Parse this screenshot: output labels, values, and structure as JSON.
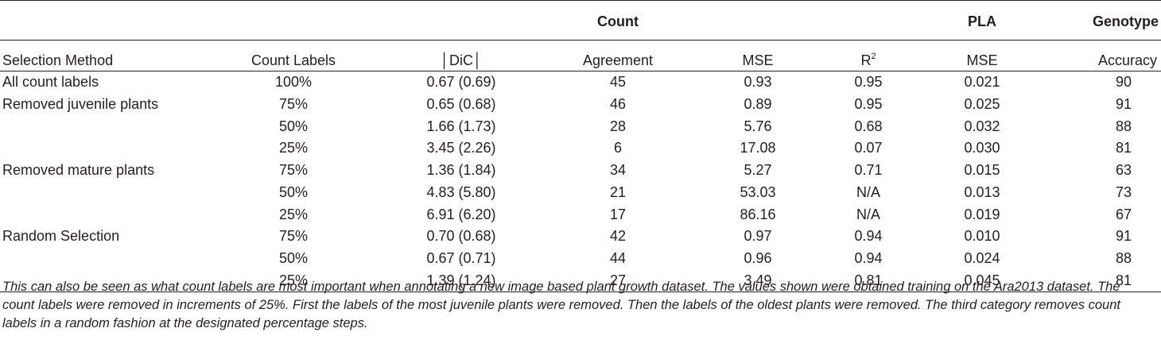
{
  "table": {
    "group_headers": {
      "count": "Count",
      "pla": "PLA",
      "genotype": "Genotype"
    },
    "columns": {
      "selection_method": "Selection Method",
      "count_labels": "Count Labels",
      "dic": "│DiC│",
      "agreement": "Agreement",
      "mse": "MSE",
      "r2_base": "R",
      "r2_sup": "2",
      "pla_mse": "MSE",
      "accuracy": "Accuracy"
    },
    "rows": [
      {
        "method": "All count labels",
        "labels": "100%",
        "dic": "0.67 (0.69)",
        "agreement": "45",
        "mse": "0.93",
        "r2": "0.95",
        "pla_mse": "0.021",
        "accuracy": "90"
      },
      {
        "method": "Removed juvenile plants",
        "labels": "75%",
        "dic": "0.65 (0.68)",
        "agreement": "46",
        "mse": "0.89",
        "r2": "0.95",
        "pla_mse": "0.025",
        "accuracy": "91"
      },
      {
        "method": "",
        "labels": "50%",
        "dic": "1.66 (1.73)",
        "agreement": "28",
        "mse": "5.76",
        "r2": "0.68",
        "pla_mse": "0.032",
        "accuracy": "88"
      },
      {
        "method": "",
        "labels": "25%",
        "dic": "3.45 (2.26)",
        "agreement": "6",
        "mse": "17.08",
        "r2": "0.07",
        "pla_mse": "0.030",
        "accuracy": "81"
      },
      {
        "method": "Removed mature plants",
        "labels": "75%",
        "dic": "1.36 (1.84)",
        "agreement": "34",
        "mse": "5.27",
        "r2": "0.71",
        "pla_mse": "0.015",
        "accuracy": "63"
      },
      {
        "method": "",
        "labels": "50%",
        "dic": "4.83 (5.80)",
        "agreement": "21",
        "mse": "53.03",
        "r2": "N/A",
        "pla_mse": "0.013",
        "accuracy": "73"
      },
      {
        "method": "",
        "labels": "25%",
        "dic": "6.91 (6.20)",
        "agreement": "17",
        "mse": "86.16",
        "r2": "N/A",
        "pla_mse": "0.019",
        "accuracy": "67"
      },
      {
        "method": "Random Selection",
        "labels": "75%",
        "dic": "0.70 (0.68)",
        "agreement": "42",
        "mse": "0.97",
        "r2": "0.94",
        "pla_mse": "0.010",
        "accuracy": "91"
      },
      {
        "method": "",
        "labels": "50%",
        "dic": "0.67 (0.71)",
        "agreement": "44",
        "mse": "0.96",
        "r2": "0.94",
        "pla_mse": "0.024",
        "accuracy": "88"
      },
      {
        "method": "",
        "labels": "25%",
        "dic": "1.39 (1.24)",
        "agreement": "27",
        "mse": "3.49",
        "r2": "0.81",
        "pla_mse": "0.045",
        "accuracy": "81"
      }
    ]
  },
  "caption": "This can also be seen as what count labels are most important when annotating a new image based plant growth dataset. The values shown were obtained training on the Ara2013 dataset. The count labels were removed in increments of 25%. First the labels of the most juvenile plants were removed. Then the labels of the oldest plants were removed. The third category removes count labels in a random fashion at the designated percentage steps."
}
